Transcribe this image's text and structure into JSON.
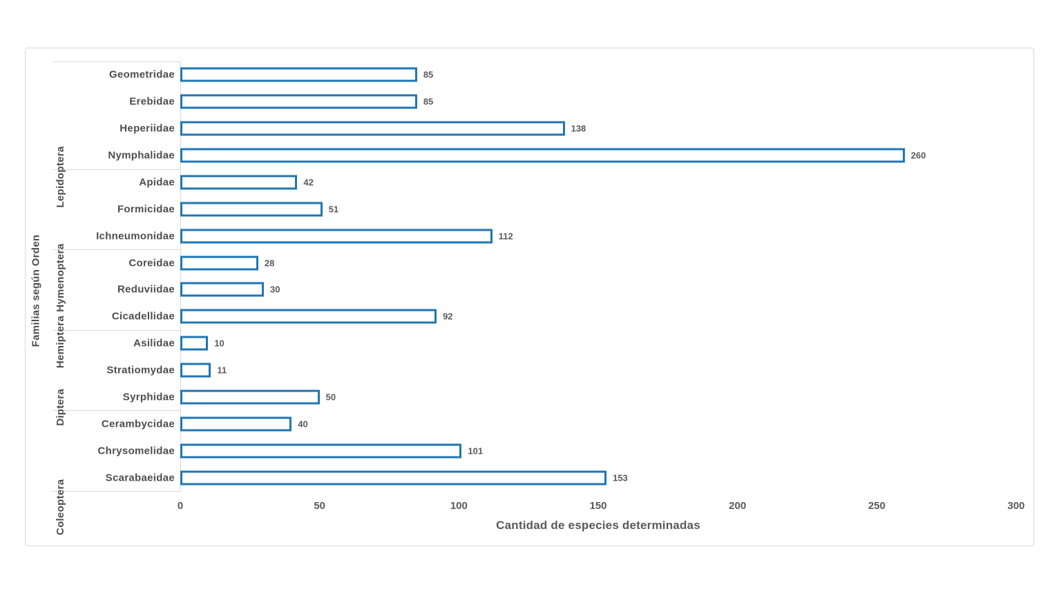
{
  "colors": {
    "bar_border": "#1F76B4",
    "bar_fill": "#FFFFFF",
    "axis_line": "#D9D9D9",
    "tick_text": "#595959",
    "label_text": "#4D4D4D"
  },
  "chart_data": {
    "type": "bar",
    "orientation": "horizontal",
    "title": "",
    "xlabel": "Cantidad de especies determinadas",
    "ylabel": "Familias según Orden",
    "xlim": [
      0,
      300
    ],
    "xticks": [
      0,
      50,
      100,
      150,
      200,
      250,
      300
    ],
    "grid": false,
    "legend": "none",
    "value_labels": true,
    "groups": [
      {
        "order": "Lepidoptera",
        "families": [
          {
            "name": "Geometridae",
            "value": 85
          },
          {
            "name": "Erebidae",
            "value": 85
          },
          {
            "name": "Heperiidae",
            "value": 138
          },
          {
            "name": "Nymphalidae",
            "value": 260
          }
        ]
      },
      {
        "order": "Hymenoptera",
        "families": [
          {
            "name": "Apidae",
            "value": 42
          },
          {
            "name": "Formicidae",
            "value": 51
          },
          {
            "name": "Ichneumonidae",
            "value": 112
          }
        ]
      },
      {
        "order": "Hemiptera",
        "families": [
          {
            "name": "Coreidae",
            "value": 28
          },
          {
            "name": "Reduviidae",
            "value": 30
          },
          {
            "name": "Cicadellidae",
            "value": 92
          }
        ]
      },
      {
        "order": "Diptera",
        "families": [
          {
            "name": "Asilidae",
            "value": 10
          },
          {
            "name": "Stratiomydae",
            "value": 11
          },
          {
            "name": "Syrphidae",
            "value": 50
          }
        ]
      },
      {
        "order": "Coleoptera",
        "families": [
          {
            "name": "Cerambycidae",
            "value": 40
          },
          {
            "name": "Chrysomelidae",
            "value": 101
          },
          {
            "name": "Scarabaeidae",
            "value": 153
          }
        ]
      }
    ]
  }
}
